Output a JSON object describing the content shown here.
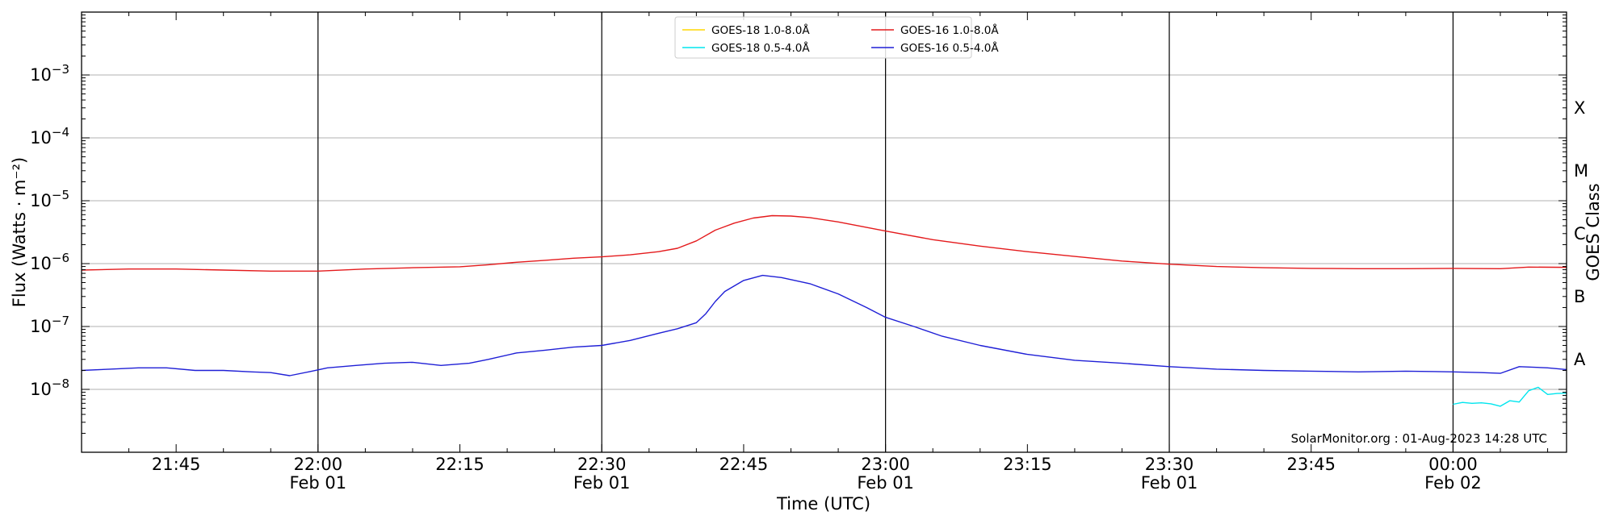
{
  "chart_data": {
    "type": "line",
    "title": "",
    "xlabel": "Time (UTC)",
    "ylabel": "Flux (Watts · m⁻²)",
    "y2label": "GOES Class",
    "yscale": "log",
    "xlim": [
      "21:35",
      "00:12"
    ],
    "ylim": [
      1e-09,
      0.01
    ],
    "grid": "horizontal at decades",
    "legend_position": "top-center",
    "x_ticks": [
      {
        "time": "21:45",
        "label": "21:45",
        "date": ""
      },
      {
        "time": "22:00",
        "label": "22:00",
        "date": "Feb 01"
      },
      {
        "time": "22:15",
        "label": "22:15",
        "date": ""
      },
      {
        "time": "22:30",
        "label": "22:30",
        "date": "Feb 01"
      },
      {
        "time": "22:45",
        "label": "22:45",
        "date": ""
      },
      {
        "time": "23:00",
        "label": "23:00",
        "date": "Feb 01"
      },
      {
        "time": "23:15",
        "label": "23:15",
        "date": ""
      },
      {
        "time": "23:30",
        "label": "23:30",
        "date": "Feb 01"
      },
      {
        "time": "23:45",
        "label": "23:45",
        "date": ""
      },
      {
        "time": "00:00",
        "label": "00:00",
        "date": "Feb 02"
      }
    ],
    "vertical_lines": [
      "22:00",
      "22:30",
      "23:00",
      "23:30",
      "00:00"
    ],
    "y_ticks": [
      {
        "value": 1e-08,
        "base": "10",
        "exp": "−8"
      },
      {
        "value": 1e-07,
        "base": "10",
        "exp": "−7"
      },
      {
        "value": 1e-06,
        "base": "10",
        "exp": "−6"
      },
      {
        "value": 1e-05,
        "base": "10",
        "exp": "−5"
      },
      {
        "value": 0.0001,
        "base": "10",
        "exp": "−4"
      },
      {
        "value": 0.001,
        "base": "10",
        "exp": "−3"
      }
    ],
    "goes_classes": [
      {
        "label": "A",
        "value": 3e-08
      },
      {
        "label": "B",
        "value": 3e-07
      },
      {
        "label": "C",
        "value": 3e-06
      },
      {
        "label": "M",
        "value": 3e-05
      },
      {
        "label": "X",
        "value": 0.0003
      }
    ],
    "annotation": "SolarMonitor.org : 01-Aug-2023 14:28 UTC",
    "series": [
      {
        "name": "GOES-18 1.0-8.0Å",
        "color": "#ffd700",
        "points": []
      },
      {
        "name": "GOES-18 0.5-4.0Å",
        "color": "#00e5ee",
        "points": [
          [
            "00:00",
            5.8e-09
          ],
          [
            "00:01",
            6.2e-09
          ],
          [
            "00:02",
            6e-09
          ],
          [
            "00:03",
            6.1e-09
          ],
          [
            "00:04",
            5.9e-09
          ],
          [
            "00:05",
            5.4e-09
          ],
          [
            "00:06",
            6.6e-09
          ],
          [
            "00:07",
            6.3e-09
          ],
          [
            "00:08",
            9.5e-09
          ],
          [
            "00:09",
            1.08e-08
          ],
          [
            "00:10",
            8.3e-09
          ],
          [
            "00:11",
            8.6e-09
          ],
          [
            "00:12",
            8.7e-09
          ],
          [
            "00:13",
            9.6e-09
          ]
        ]
      },
      {
        "name": "GOES-16 1.0-8.0Å",
        "color": "#e41a1c",
        "points": [
          [
            "21:35",
            7.9e-07
          ],
          [
            "21:40",
            8.2e-07
          ],
          [
            "21:45",
            8.2e-07
          ],
          [
            "21:50",
            7.9e-07
          ],
          [
            "21:55",
            7.6e-07
          ],
          [
            "22:00",
            7.6e-07
          ],
          [
            "22:05",
            8.2e-07
          ],
          [
            "22:10",
            8.6e-07
          ],
          [
            "22:15",
            8.9e-07
          ],
          [
            "22:18",
            9.6e-07
          ],
          [
            "22:21",
            1.05e-06
          ],
          [
            "22:24",
            1.13e-06
          ],
          [
            "22:27",
            1.22e-06
          ],
          [
            "22:30",
            1.28e-06
          ],
          [
            "22:33",
            1.38e-06
          ],
          [
            "22:36",
            1.55e-06
          ],
          [
            "22:38",
            1.75e-06
          ],
          [
            "22:40",
            2.3e-06
          ],
          [
            "22:42",
            3.4e-06
          ],
          [
            "22:44",
            4.4e-06
          ],
          [
            "22:46",
            5.3e-06
          ],
          [
            "22:48",
            5.8e-06
          ],
          [
            "22:50",
            5.7e-06
          ],
          [
            "22:52",
            5.4e-06
          ],
          [
            "22:55",
            4.6e-06
          ],
          [
            "23:00",
            3.3e-06
          ],
          [
            "23:05",
            2.4e-06
          ],
          [
            "23:10",
            1.9e-06
          ],
          [
            "23:15",
            1.55e-06
          ],
          [
            "23:20",
            1.3e-06
          ],
          [
            "23:25",
            1.1e-06
          ],
          [
            "23:30",
            9.8e-07
          ],
          [
            "23:35",
            9e-07
          ],
          [
            "23:40",
            8.6e-07
          ],
          [
            "23:45",
            8.4e-07
          ],
          [
            "23:50",
            8.3e-07
          ],
          [
            "23:55",
            8.3e-07
          ],
          [
            "00:00",
            8.4e-07
          ],
          [
            "00:05",
            8.3e-07
          ],
          [
            "00:08",
            8.8e-07
          ],
          [
            "00:13",
            8.7e-07
          ]
        ]
      },
      {
        "name": "GOES-16 0.5-4.0Å",
        "color": "#1f1fd6",
        "points": [
          [
            "21:35",
            2e-08
          ],
          [
            "21:38",
            2.1e-08
          ],
          [
            "21:41",
            2.2e-08
          ],
          [
            "21:44",
            2.2e-08
          ],
          [
            "21:47",
            2e-08
          ],
          [
            "21:50",
            2e-08
          ],
          [
            "21:53",
            1.9e-08
          ],
          [
            "21:55",
            1.85e-08
          ],
          [
            "21:57",
            1.65e-08
          ],
          [
            "21:59",
            1.9e-08
          ],
          [
            "22:01",
            2.2e-08
          ],
          [
            "22:04",
            2.4e-08
          ],
          [
            "22:07",
            2.6e-08
          ],
          [
            "22:10",
            2.7e-08
          ],
          [
            "22:13",
            2.4e-08
          ],
          [
            "22:16",
            2.6e-08
          ],
          [
            "22:18",
            3e-08
          ],
          [
            "22:21",
            3.8e-08
          ],
          [
            "22:24",
            4.2e-08
          ],
          [
            "22:27",
            4.7e-08
          ],
          [
            "22:30",
            5e-08
          ],
          [
            "22:33",
            6e-08
          ],
          [
            "22:36",
            7.8e-08
          ],
          [
            "22:38",
            9.2e-08
          ],
          [
            "22:40",
            1.15e-07
          ],
          [
            "22:41",
            1.6e-07
          ],
          [
            "22:42",
            2.5e-07
          ],
          [
            "22:43",
            3.6e-07
          ],
          [
            "22:45",
            5.4e-07
          ],
          [
            "22:47",
            6.5e-07
          ],
          [
            "22:49",
            6e-07
          ],
          [
            "22:52",
            4.8e-07
          ],
          [
            "22:55",
            3.3e-07
          ],
          [
            "22:58",
            2e-07
          ],
          [
            "23:00",
            1.4e-07
          ],
          [
            "23:03",
            1e-07
          ],
          [
            "23:06",
            7e-08
          ],
          [
            "23:10",
            5e-08
          ],
          [
            "23:15",
            3.6e-08
          ],
          [
            "23:20",
            2.9e-08
          ],
          [
            "23:25",
            2.6e-08
          ],
          [
            "23:30",
            2.3e-08
          ],
          [
            "23:35",
            2.1e-08
          ],
          [
            "23:40",
            2e-08
          ],
          [
            "23:45",
            1.95e-08
          ],
          [
            "23:50",
            1.9e-08
          ],
          [
            "23:55",
            1.95e-08
          ],
          [
            "00:00",
            1.9e-08
          ],
          [
            "00:03",
            1.85e-08
          ],
          [
            "00:05",
            1.8e-08
          ],
          [
            "00:07",
            2.3e-08
          ],
          [
            "00:10",
            2.2e-08
          ],
          [
            "00:13",
            2e-08
          ]
        ]
      }
    ]
  }
}
